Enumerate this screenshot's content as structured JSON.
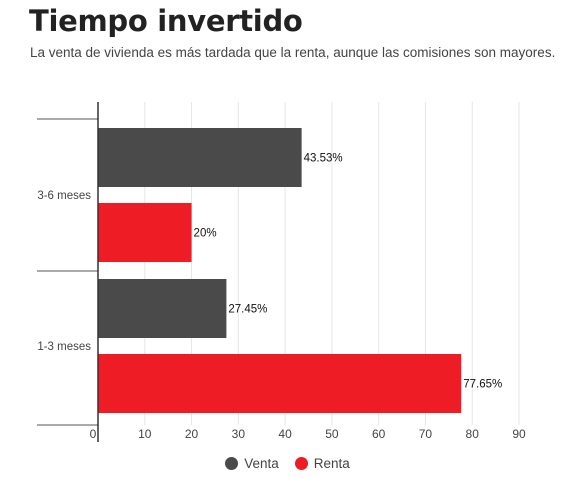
{
  "chart_data": {
    "type": "bar",
    "orientation": "horizontal",
    "title": "Tiempo invertido",
    "subtitle": "La venta de vivienda es más tardada que la renta, aunque las comisiones son mayores.",
    "categories": [
      "3-6 meses",
      "1-3 meses"
    ],
    "series": [
      {
        "name": "Venta",
        "color": "#4a4a4a",
        "values": [
          43.53,
          27.45
        ],
        "labels": [
          "43.53%",
          "27.45%"
        ]
      },
      {
        "name": "Renta",
        "color": "#ee1c25",
        "values": [
          20,
          77.65
        ],
        "labels": [
          "20%",
          "77.65%"
        ]
      }
    ],
    "xlim": [
      0,
      90
    ],
    "xticks": [
      0,
      10,
      20,
      30,
      40,
      50,
      60,
      70,
      80,
      90
    ],
    "xlabel": "",
    "ylabel": "",
    "grid": true,
    "legend_position": "bottom-center"
  }
}
